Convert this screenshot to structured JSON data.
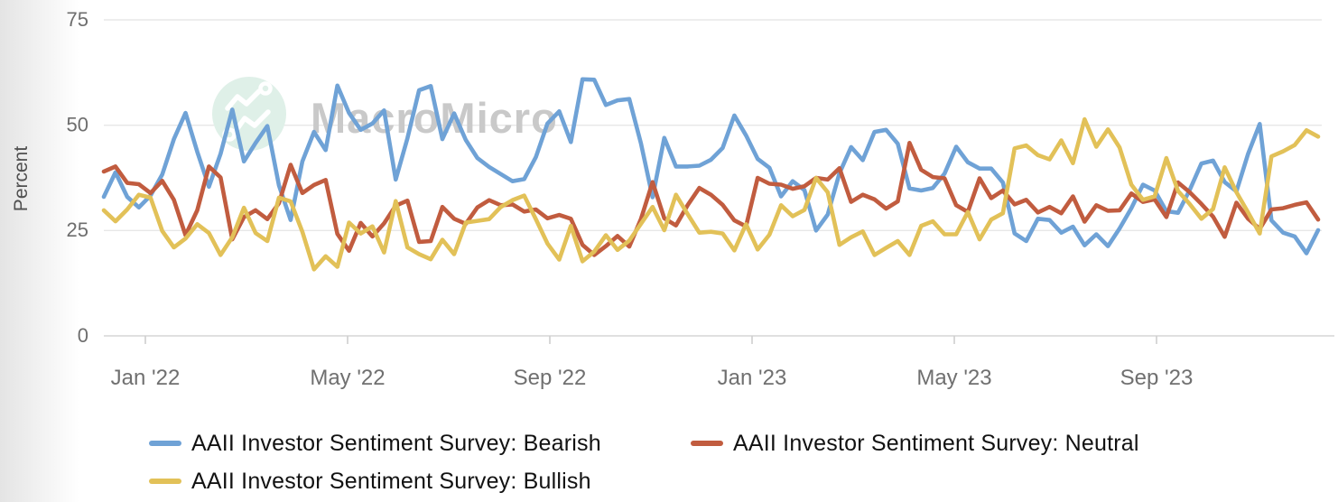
{
  "watermark": {
    "text": "MacroMicro",
    "text_color": "#c9c9c9",
    "logo_bg_color": "#dff0e8",
    "logo_glyph": "line-chart-icon",
    "glyph_color": "#ffffff"
  },
  "y_axis": {
    "label": "Percent",
    "tick_labels": [
      "75",
      "50",
      "25",
      "0"
    ],
    "tick_values": [
      75,
      50,
      25,
      0
    ],
    "label_color": "#565656",
    "tick_color": "#6e6e6e"
  },
  "x_axis": {
    "tick_label_color": "#707070",
    "ticks": [
      {
        "label": "Jan '22",
        "week": 3.56
      },
      {
        "label": "May '22",
        "week": 20.88
      },
      {
        "label": "Sep '22",
        "week": 38.2
      },
      {
        "label": "Jan '23",
        "week": 55.52
      },
      {
        "label": "May '23",
        "week": 72.84
      },
      {
        "label": "Sep '23",
        "week": 90.16
      }
    ]
  },
  "chart_data": {
    "type": "line",
    "frequency": "weekly",
    "unit": "percent",
    "ylabel": "Percent",
    "ylim": [
      0,
      75
    ],
    "grid": true,
    "legend_position": "bottom",
    "x_tick_labels": [
      "Jan '22",
      "May '22",
      "Sep '22",
      "Jan '23",
      "May '23",
      "Sep '23"
    ],
    "series": [
      {
        "name": "AAII Investor Sentiment Survey: Bearish",
        "color": "#6FA2D6",
        "values": [
          33.0,
          38.8,
          33.0,
          30.5,
          33.3,
          38.3,
          46.7,
          52.9,
          43.7,
          35.4,
          43.2,
          53.7,
          41.4,
          45.8,
          49.8,
          35.7,
          27.5,
          41.4,
          48.4,
          44.1,
          59.4,
          52.9,
          48.9,
          50.4,
          53.5,
          37.1,
          46.9,
          58.3,
          59.3,
          46.7,
          52.8,
          46.5,
          42.2,
          40.1,
          38.4,
          36.7,
          37.2,
          42.4,
          50.4,
          53.3,
          46.0,
          60.9,
          60.8,
          54.8,
          55.9,
          56.2,
          45.7,
          32.9,
          47.0,
          40.2,
          40.2,
          40.4,
          41.8,
          44.6,
          52.3,
          47.6,
          42.0,
          39.9,
          33.1,
          36.7,
          34.6,
          25.0,
          28.8,
          38.6,
          44.8,
          41.7,
          48.4,
          48.9,
          45.6,
          35.0,
          34.5,
          35.1,
          38.5,
          44.9,
          41.2,
          39.7,
          39.7,
          36.4,
          24.3,
          22.5,
          27.8,
          27.5,
          24.5,
          25.9,
          21.5,
          24.1,
          21.3,
          25.5,
          30.3,
          35.9,
          34.5,
          29.6,
          29.2,
          34.6,
          40.9,
          41.6,
          36.5,
          34.3,
          43.2,
          50.3,
          27.4,
          24.5,
          23.6,
          19.6,
          25.1
        ]
      },
      {
        "name": "AAII Investor Sentiment Survey: Neutral",
        "color": "#C15C3F",
        "values": [
          39.0,
          40.2,
          36.3,
          36.0,
          33.9,
          36.8,
          32.3,
          23.9,
          29.8,
          40.2,
          37.6,
          22.9,
          28.2,
          29.8,
          27.7,
          31.5,
          40.6,
          33.9,
          35.8,
          37.0,
          24.2,
          20.2,
          26.8,
          23.6,
          26.7,
          30.9,
          32.1,
          22.3,
          22.5,
          30.6,
          27.8,
          26.6,
          30.5,
          32.2,
          31.0,
          31.2,
          29.5,
          30.0,
          27.9,
          28.7,
          27.8,
          21.6,
          19.2,
          21.3,
          23.7,
          21.2,
          27.7,
          36.5,
          27.9,
          26.2,
          31.0,
          35.1,
          33.5,
          31.1,
          27.4,
          26.0,
          37.5,
          36.1,
          35.9,
          34.9,
          35.5,
          37.5,
          37.1,
          39.8,
          31.8,
          33.5,
          32.4,
          30.2,
          31.9,
          45.8,
          39.4,
          37.7,
          37.4,
          31.0,
          29.4,
          37.4,
          32.7,
          34.5,
          31.2,
          32.3,
          29.3,
          30.6,
          29.1,
          33.1,
          27.1,
          31.0,
          29.7,
          29.8,
          33.8,
          31.8,
          32.4,
          28.2,
          36.4,
          34.1,
          31.3,
          28.3,
          23.5,
          31.6,
          27.8,
          25.4,
          30.0,
          30.3,
          31.1,
          31.7,
          27.6
        ]
      },
      {
        "name": "AAII Investor Sentiment Survey: Bullish",
        "color": "#E2C158",
        "values": [
          29.8,
          27.2,
          30.0,
          33.5,
          32.8,
          24.9,
          21.0,
          23.1,
          26.5,
          24.4,
          19.2,
          23.4,
          30.4,
          24.4,
          22.5,
          32.8,
          31.9,
          24.7,
          15.8,
          18.9,
          16.4,
          26.9,
          24.3,
          26.0,
          19.8,
          32.0,
          21.0,
          19.4,
          18.2,
          22.8,
          19.4,
          26.9,
          27.3,
          27.7,
          30.6,
          32.2,
          33.3,
          27.7,
          21.9,
          18.1,
          26.1,
          17.7,
          20.0,
          23.9,
          20.4,
          22.6,
          26.6,
          30.6,
          25.1,
          33.5,
          28.9,
          24.5,
          24.7,
          24.3,
          20.3,
          26.5,
          20.5,
          24.0,
          31.0,
          28.4,
          29.9,
          37.5,
          34.1,
          21.6,
          23.4,
          24.8,
          19.2,
          20.9,
          22.5,
          19.2,
          26.1,
          27.2,
          24.1,
          24.1,
          29.4,
          22.9,
          27.6,
          29.1,
          44.5,
          45.2,
          42.9,
          41.9,
          46.4,
          41.0,
          51.4,
          44.9,
          49.0,
          44.7,
          35.9,
          32.3,
          33.1,
          42.2,
          34.4,
          31.3,
          27.8,
          30.1,
          40.0,
          34.1,
          29.3,
          24.3,
          42.6,
          43.8,
          45.3,
          48.8,
          47.3
        ]
      }
    ]
  },
  "colors": {
    "gridline": "#e7e7e7",
    "axis_line": "#d6d6d6",
    "tick_mark": "#cfcfcf"
  }
}
